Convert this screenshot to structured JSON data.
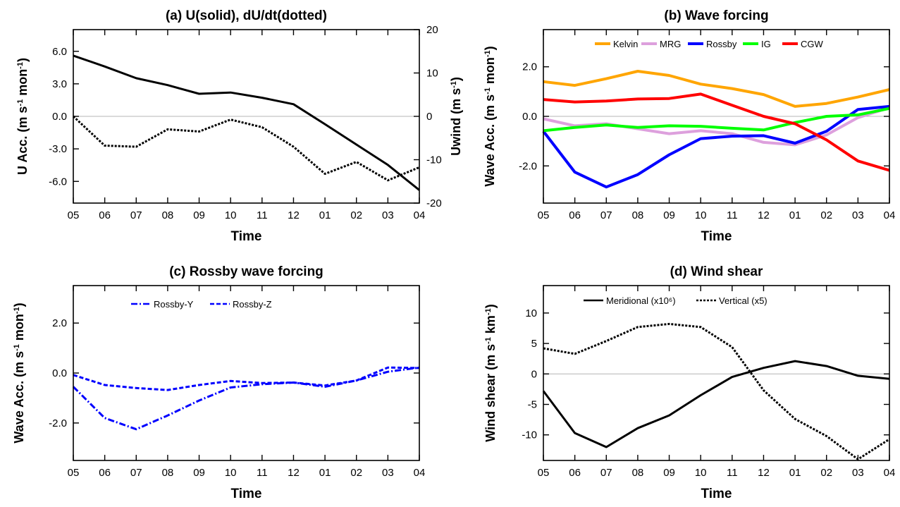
{
  "chart_data": [
    {
      "id": "a",
      "type": "line",
      "title": "(a) U(solid), dU/dt(dotted)",
      "xlabel": "Time",
      "ylabel": "U Acc. (m s-1 mon-1)",
      "ylabel_right": "Uwind (m s-1)",
      "categories": [
        "05",
        "06",
        "07",
        "08",
        "09",
        "10",
        "11",
        "12",
        "01",
        "02",
        "03",
        "04"
      ],
      "ylim": [
        -8,
        8
      ],
      "yticks": [
        "-6.0",
        "-3.0",
        "0.0",
        "3.0",
        "6.0"
      ],
      "ylim_right": [
        -20,
        20
      ],
      "yticks_right": [
        "-20",
        "-10",
        "0",
        "10",
        "20"
      ],
      "zero_line": true,
      "grid": false,
      "series": [
        {
          "style": "solid",
          "axis": "right",
          "color": "#000000",
          "values": [
            14,
            11.5,
            8.8,
            7.2,
            5.2,
            5.5,
            4.3,
            2.8,
            -1.8,
            -6.5,
            -11.2,
            -17
          ]
        },
        {
          "style": "dotted",
          "axis": "left",
          "color": "#000000",
          "values": [
            0.0,
            -2.7,
            -2.8,
            -1.2,
            -1.4,
            -0.3,
            -1.0,
            -2.8,
            -5.3,
            -4.2,
            -5.9,
            -4.7
          ]
        }
      ]
    },
    {
      "id": "b",
      "type": "line",
      "title": "(b) Wave forcing",
      "xlabel": "Time",
      "ylabel": "Wave Acc. (m s-1 mon-1)",
      "categories": [
        "05",
        "06",
        "07",
        "08",
        "09",
        "10",
        "11",
        "12",
        "01",
        "02",
        "03",
        "04"
      ],
      "ylim": [
        -3.5,
        3.5
      ],
      "yticks": [
        "-2.0",
        "0.0",
        "2.0"
      ],
      "zero_line": true,
      "grid": false,
      "legend_position": "top",
      "series": [
        {
          "name": "Kelvin",
          "color": "#ffa500",
          "style": "solid",
          "values": [
            1.4,
            1.25,
            1.52,
            1.82,
            1.65,
            1.3,
            1.12,
            0.88,
            0.4,
            0.52,
            0.78,
            1.08
          ]
        },
        {
          "name": "MRG",
          "color": "#dda0dd",
          "style": "solid",
          "values": [
            -0.1,
            -0.38,
            -0.3,
            -0.5,
            -0.7,
            -0.58,
            -0.7,
            -1.05,
            -1.15,
            -0.75,
            -0.05,
            0.35
          ]
        },
        {
          "name": "Rossby",
          "color": "#0000ff",
          "style": "solid",
          "values": [
            -0.6,
            -2.25,
            -2.85,
            -2.35,
            -1.55,
            -0.9,
            -0.8,
            -0.78,
            -1.08,
            -0.6,
            0.28,
            0.4
          ]
        },
        {
          "name": "IG",
          "color": "#00ff00",
          "style": "solid",
          "values": [
            -0.58,
            -0.45,
            -0.35,
            -0.45,
            -0.38,
            -0.4,
            -0.48,
            -0.55,
            -0.25,
            0.0,
            0.06,
            0.32
          ]
        },
        {
          "name": "CGW",
          "color": "#ff0000",
          "style": "solid",
          "values": [
            0.68,
            0.58,
            0.62,
            0.7,
            0.72,
            0.9,
            0.45,
            0.0,
            -0.3,
            -0.95,
            -1.8,
            -2.18
          ]
        }
      ]
    },
    {
      "id": "c",
      "type": "line",
      "title": "(c) Rossby wave forcing",
      "xlabel": "Time",
      "ylabel": "Wave Acc. (m s-1 mon-1)",
      "categories": [
        "05",
        "06",
        "07",
        "08",
        "09",
        "10",
        "11",
        "12",
        "01",
        "02",
        "03",
        "04"
      ],
      "ylim": [
        -3.5,
        3.5
      ],
      "yticks": [
        "-2.0",
        "0.0",
        "2.0"
      ],
      "zero_line": false,
      "grid": false,
      "legend_position": "top",
      "series": [
        {
          "name": "Rossby-Y",
          "color": "#0000ff",
          "style": "dashdot",
          "values": [
            -0.55,
            -1.8,
            -2.25,
            -1.7,
            -1.1,
            -0.58,
            -0.45,
            -0.38,
            -0.55,
            -0.3,
            0.05,
            0.22
          ]
        },
        {
          "name": "Rossby-Z",
          "color": "#0000ff",
          "style": "dashed",
          "values": [
            -0.08,
            -0.48,
            -0.6,
            -0.68,
            -0.48,
            -0.32,
            -0.4,
            -0.38,
            -0.5,
            -0.3,
            0.22,
            0.2
          ]
        }
      ]
    },
    {
      "id": "d",
      "type": "line",
      "title": "(d) Wind shear",
      "xlabel": "Time",
      "ylabel": "Wind shear (m s-1 km-1)",
      "categories": [
        "05",
        "06",
        "07",
        "08",
        "09",
        "10",
        "11",
        "12",
        "01",
        "02",
        "03",
        "04"
      ],
      "ylim": [
        -14.2,
        14.5
      ],
      "yticks": [
        "-10",
        "-5",
        "0",
        "5",
        "10"
      ],
      "zero_line": true,
      "grid": false,
      "legend_position": "top",
      "series": [
        {
          "name": "Meridional (x10⁶)",
          "color": "#000000",
          "style": "solid",
          "values": [
            -2.8,
            -9.7,
            -12.0,
            -8.9,
            -6.8,
            -3.5,
            -0.5,
            1.0,
            2.1,
            1.3,
            -0.3,
            -0.8
          ]
        },
        {
          "name": "Vertical (x5)",
          "color": "#000000",
          "style": "dotted",
          "values": [
            4.2,
            3.3,
            5.4,
            7.7,
            8.2,
            7.7,
            4.4,
            -2.7,
            -7.4,
            -10.2,
            -14.0,
            -10.7
          ]
        }
      ]
    }
  ]
}
